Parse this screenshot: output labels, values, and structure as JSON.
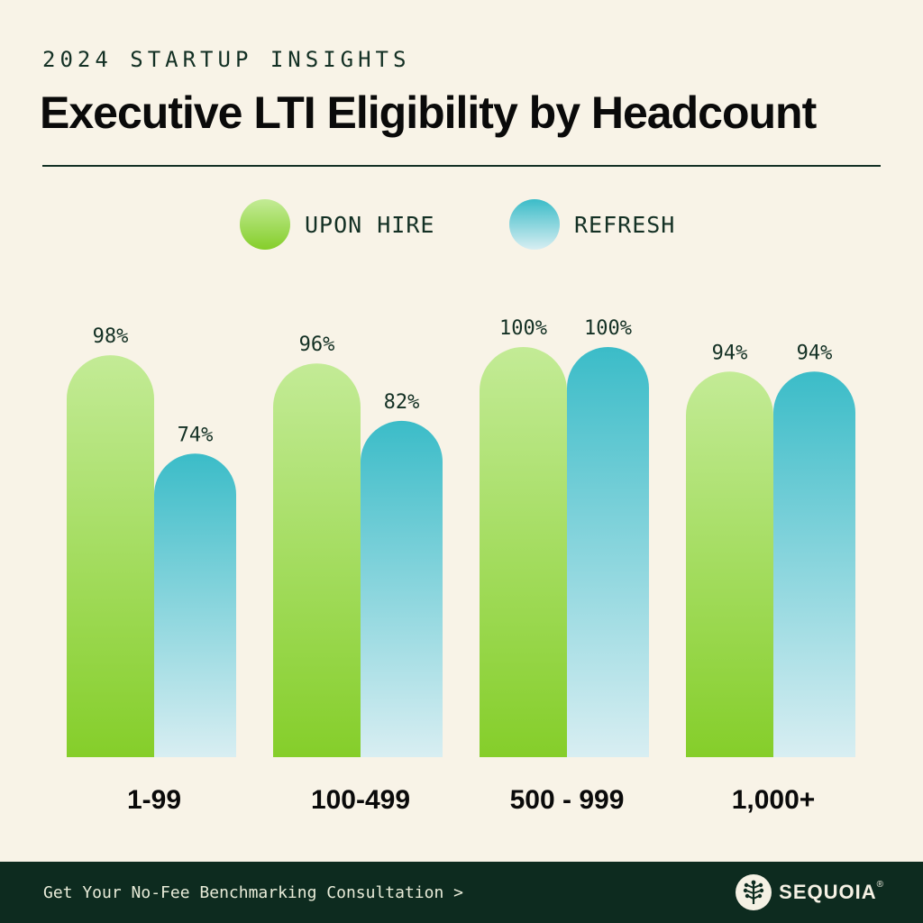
{
  "header": {
    "eyebrow": "2024 STARTUP INSIGHTS",
    "title": "Executive LTI Eligibility by Headcount"
  },
  "legend": [
    {
      "label": "UPON HIRE",
      "color": "#8fd13a"
    },
    {
      "label": "REFRESH",
      "color": "#3bbcc8"
    }
  ],
  "chart_data": {
    "type": "bar",
    "title": "Executive LTI Eligibility by Headcount",
    "categories": [
      "1-99",
      "100-499",
      "500 - 999",
      "1,000+"
    ],
    "series": [
      {
        "name": "UPON HIRE",
        "values": [
          98,
          96,
          100,
          94
        ],
        "labels": [
          "98%",
          "96%",
          "100%",
          "94%"
        ],
        "color_top": "#c3eb96",
        "color_bottom": "#85ce2a"
      },
      {
        "name": "REFRESH",
        "values": [
          74,
          82,
          100,
          94
        ],
        "labels": [
          "74%",
          "82%",
          "100%",
          "94%"
        ],
        "color_top": "#3bbcc8",
        "color_bottom": "#d8eef2"
      }
    ],
    "ylim": [
      0,
      100
    ],
    "grid": false,
    "legend_position": "top-center",
    "xlabel": "",
    "ylabel": ""
  },
  "footer": {
    "cta": "Get Your No-Fee Benchmarking Consultation >",
    "brand": "SEQUOIA",
    "brand_mark": "®"
  },
  "icons": {
    "logo": "sequoia-tree-icon"
  }
}
